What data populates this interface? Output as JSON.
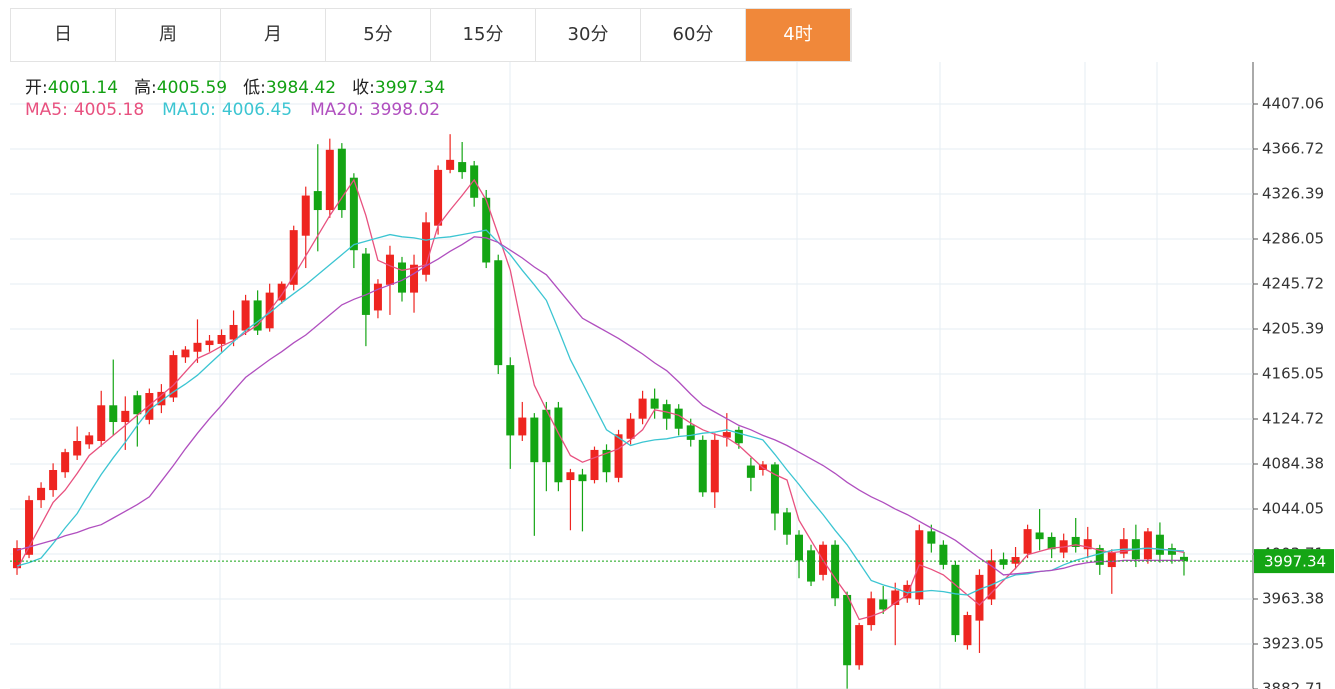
{
  "chart_data": {
    "type": "candlestick",
    "tabs": [
      {
        "label": "日"
      },
      {
        "label": "周"
      },
      {
        "label": "月"
      },
      {
        "label": "5分"
      },
      {
        "label": "15分"
      },
      {
        "label": "30分"
      },
      {
        "label": "60分"
      },
      {
        "label": "4时",
        "active": true
      }
    ],
    "ohlc_labels": [
      "开:",
      "高:",
      "低:",
      "收:"
    ],
    "up_color": "#ee2520",
    "down_color": "#14a514",
    "grid": true,
    "ylim": [
      3882.71,
      4444.7
    ],
    "yticks": [
      4407.06,
      4366.72,
      4326.39,
      4286.05,
      4245.72,
      4205.39,
      4165.05,
      4124.72,
      4084.38,
      4044.05,
      4003.71,
      3963.38,
      3923.05,
      3882.71
    ],
    "candles": [
      [
        3991,
        4016,
        3985,
        4009
      ],
      [
        4003,
        4056,
        4000,
        4052
      ],
      [
        4052,
        4068,
        4045,
        4063
      ],
      [
        4061,
        4085,
        4055,
        4079
      ],
      [
        4077,
        4098,
        4072,
        4095
      ],
      [
        4092,
        4118,
        4088,
        4105
      ],
      [
        4102,
        4113,
        4098,
        4110
      ],
      [
        4105,
        4150,
        4100,
        4137
      ],
      [
        4137,
        4178,
        4110,
        4122
      ],
      [
        4122,
        4145,
        4097,
        4132
      ],
      [
        4146,
        4150,
        4100,
        4129
      ],
      [
        4124,
        4152,
        4120,
        4148
      ],
      [
        4137,
        4156,
        4130,
        4149
      ],
      [
        4144,
        4186,
        4140,
        4182
      ],
      [
        4180,
        4190,
        4175,
        4187
      ],
      [
        4185,
        4214,
        4175,
        4193
      ],
      [
        4191,
        4200,
        4185,
        4195
      ],
      [
        4192,
        4205,
        4185,
        4200
      ],
      [
        4196,
        4222,
        4190,
        4209
      ],
      [
        4204,
        4236,
        4200,
        4231
      ],
      [
        4231,
        4240,
        4200,
        4204
      ],
      [
        4206,
        4246,
        4203,
        4238
      ],
      [
        4231,
        4248,
        4228,
        4246
      ],
      [
        4245,
        4298,
        4240,
        4294
      ],
      [
        4289,
        4333,
        4260,
        4325
      ],
      [
        4329,
        4371,
        4275,
        4312
      ],
      [
        4312,
        4376,
        4305,
        4366
      ],
      [
        4367,
        4372,
        4305,
        4312
      ],
      [
        4341,
        4345,
        4260,
        4276
      ],
      [
        4273,
        4278,
        4190,
        4218
      ],
      [
        4222,
        4250,
        4215,
        4246
      ],
      [
        4245,
        4280,
        4218,
        4272
      ],
      [
        4265,
        4270,
        4230,
        4238
      ],
      [
        4238,
        4272,
        4220,
        4263
      ],
      [
        4254,
        4310,
        4248,
        4301
      ],
      [
        4298,
        4352,
        4290,
        4348
      ],
      [
        4348,
        4380,
        4345,
        4357
      ],
      [
        4355,
        4373,
        4340,
        4346
      ],
      [
        4352,
        4356,
        4315,
        4323
      ],
      [
        4323,
        4330,
        4260,
        4265
      ],
      [
        4267,
        4272,
        4165,
        4173
      ],
      [
        4173,
        4180,
        4080,
        4110
      ],
      [
        4110,
        4140,
        4105,
        4126
      ],
      [
        4126,
        4130,
        4020,
        4086
      ],
      [
        4133,
        4140,
        4060,
        4086
      ],
      [
        4135,
        4140,
        4060,
        4068
      ],
      [
        4070,
        4080,
        4025,
        4077
      ],
      [
        4075,
        4080,
        4024,
        4069
      ],
      [
        4070,
        4100,
        4067,
        4097
      ],
      [
        4097,
        4102,
        4068,
        4077
      ],
      [
        4072,
        4115,
        4068,
        4111
      ],
      [
        4107,
        4130,
        4102,
        4125
      ],
      [
        4125,
        4150,
        4120,
        4143
      ],
      [
        4143,
        4152,
        4125,
        4134
      ],
      [
        4138,
        4142,
        4115,
        4125
      ],
      [
        4134,
        4138,
        4110,
        4116
      ],
      [
        4119,
        4125,
        4100,
        4106
      ],
      [
        4106,
        4110,
        4055,
        4059
      ],
      [
        4059,
        4112,
        4045,
        4106
      ],
      [
        4108,
        4130,
        4100,
        4113
      ],
      [
        4115,
        4118,
        4098,
        4103
      ],
      [
        4083,
        4090,
        4060,
        4072
      ],
      [
        4079,
        4087,
        4074,
        4084
      ],
      [
        4084,
        4086,
        4025,
        4040
      ],
      [
        4041,
        4045,
        4012,
        4021
      ],
      [
        4021,
        4025,
        3982,
        3998
      ],
      [
        4007,
        4012,
        3975,
        3979
      ],
      [
        3985,
        4015,
        3980,
        4012
      ],
      [
        4012,
        4016,
        3957,
        3964
      ],
      [
        3967,
        3970,
        3883,
        3904
      ],
      [
        3904,
        3942,
        3900,
        3940
      ],
      [
        3940,
        3970,
        3935,
        3964
      ],
      [
        3963,
        3975,
        3950,
        3954
      ],
      [
        3958,
        3978,
        3922,
        3971
      ],
      [
        3964,
        3980,
        3960,
        3976
      ],
      [
        3963,
        4030,
        3958,
        4025
      ],
      [
        4024,
        4030,
        4005,
        4013
      ],
      [
        4012,
        4016,
        3990,
        3994
      ],
      [
        3994,
        3997,
        3925,
        3931
      ],
      [
        3922,
        3952,
        3918,
        3949
      ],
      [
        3944,
        3990,
        3915,
        3985
      ],
      [
        3963,
        4008,
        3958,
        3998
      ],
      [
        3999,
        4005,
        3990,
        3994
      ],
      [
        3995,
        4010,
        3990,
        4001
      ],
      [
        4004,
        4030,
        4000,
        4026
      ],
      [
        4023,
        4044,
        4007,
        4017
      ],
      [
        4019,
        4023,
        4000,
        4008
      ],
      [
        4005,
        4022,
        4000,
        4016
      ],
      [
        4019,
        4036,
        4005,
        4010
      ],
      [
        4008,
        4028,
        4000,
        4017
      ],
      [
        4009,
        4012,
        3985,
        3994
      ],
      [
        3992,
        4008,
        3968,
        4005
      ],
      [
        4004,
        4027,
        4000,
        4017
      ],
      [
        4017,
        4030,
        3992,
        3999
      ],
      [
        3999,
        4027,
        3995,
        4024
      ],
      [
        4021,
        4032,
        3996,
        4003
      ],
      [
        4009,
        4013,
        3995,
        4003
      ],
      [
        4001.14,
        4005.59,
        3984.42,
        3997.34
      ]
    ],
    "series": [
      {
        "name": "MA5:",
        "color": "#e8517f",
        "values": [
          3990,
          4010,
          4030,
          4050,
          4061,
          4076,
          4092,
          4101,
          4110,
          4119,
          4128,
          4137,
          4146,
          4155,
          4167,
          4179,
          4184,
          4190,
          4195,
          4202,
          4209,
          4222,
          4236,
          4253,
          4271,
          4289,
          4307,
          4323,
          4339,
          4307,
          4267,
          4262,
          4258,
          4260,
          4263,
          4298,
          4312,
          4325,
          4339,
          4321,
          4290,
          4258,
          4205,
          4155,
          4133,
          4112,
          4092,
          4086,
          4090,
          4094,
          4098,
          4106,
          4115,
          4133,
          4131,
          4128,
          4121,
          4115,
          4111,
          4108,
          4101,
          4091,
          4081,
          4075,
          4070,
          4034,
          4016,
          3998,
          3982,
          3967,
          3945,
          3948,
          3952,
          3960,
          3967,
          3994,
          3990,
          3985,
          3976,
          3967,
          3958,
          3969,
          3980,
          3991,
          4003,
          4006,
          4009,
          4010,
          4012,
          4010,
          4007,
          4005,
          4006,
          4008,
          4009,
          4008,
          4007,
          4005.18
        ]
      },
      {
        "name": "MA10:",
        "color": "#3cc5d2",
        "values": [
          3993,
          3996,
          4000,
          4013,
          4027,
          4040,
          4058,
          4075,
          4090,
          4104,
          4119,
          4133,
          4141,
          4149,
          4156,
          4164,
          4174,
          4184,
          4194,
          4204,
          4212,
          4220,
          4229,
          4237,
          4245,
          4254,
          4263,
          4272,
          4281,
          4284,
          4287,
          4290,
          4288,
          4287,
          4285,
          4287,
          4288,
          4290,
          4292,
          4294,
          4283,
          4272,
          4258,
          4245,
          4231,
          4205,
          4178,
          4157,
          4136,
          4115,
          4108,
          4101,
          4104,
          4106,
          4107,
          4109,
          4110,
          4112,
          4113,
          4115,
          4112,
          4109,
          4106,
          4093,
          4079,
          4066,
          4052,
          4039,
          4025,
          4012,
          3996,
          3980,
          3976,
          3973,
          3969,
          3970,
          3971,
          3970,
          3968,
          3967,
          3972,
          3976,
          3981,
          3985,
          3986,
          3988,
          3989,
          3994,
          3998,
          4001,
          4004,
          4007,
          4008,
          4008,
          4009,
          4008,
          4007,
          4006.45
        ]
      },
      {
        "name": "MA20:",
        "color": "#b04fbf",
        "values": [
          4007,
          4010,
          4013,
          4016,
          4020,
          4023,
          4027,
          4030,
          4036,
          4042,
          4048,
          4055,
          4069,
          4083,
          4098,
          4112,
          4125,
          4137,
          4150,
          4162,
          4170,
          4178,
          4185,
          4193,
          4200,
          4209,
          4218,
          4227,
          4232,
          4236,
          4241,
          4245,
          4249,
          4255,
          4262,
          4268,
          4275,
          4281,
          4288,
          4287,
          4283,
          4276,
          4269,
          4261,
          4254,
          4241,
          4228,
          4215,
          4209,
          4203,
          4197,
          4190,
          4183,
          4175,
          4168,
          4158,
          4147,
          4137,
          4131,
          4125,
          4119,
          4115,
          4110,
          4106,
          4101,
          4095,
          4089,
          4083,
          4076,
          4068,
          4061,
          4055,
          4050,
          4044,
          4039,
          4033,
          4027,
          4022,
          4016,
          4008,
          4000,
          3993,
          3985,
          3986,
          3987,
          3988,
          3989,
          3991,
          3994,
          3996,
          3997,
          3997,
          3998,
          3998,
          3998,
          3998,
          3998,
          3998.02
        ]
      }
    ]
  }
}
